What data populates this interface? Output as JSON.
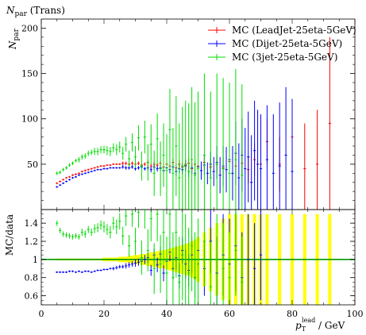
{
  "chart_data": {
    "type": "scatter",
    "title": "N",
    "title_sub": "par",
    "title_tail": " (Trans)",
    "ylabel_main": "N",
    "ylabel_main_sub": "par",
    "ylabel_ratio": "MC/data",
    "xlabel_main": "p",
    "xlabel_sub": "T",
    "xlabel_sup": "lead",
    "xlabel_unit": " / GeV",
    "xlim": [
      0,
      100
    ],
    "ylim_main": [
      0,
      210
    ],
    "ylim_ratio": [
      0.5,
      1.55
    ],
    "x_ticks": [
      "0",
      "20",
      "40",
      "60",
      "80",
      "100"
    ],
    "y_ticks_main": [
      "50",
      "100",
      "150",
      "200"
    ],
    "y_ticks_ratio": [
      "0.6",
      "0.8",
      "1",
      "1.2",
      "1.4"
    ],
    "legend_position": "top-right",
    "series": [
      {
        "name": "MC (LeadJet-25eta-5GeV)",
        "color": "#ff0000",
        "x": [
          5,
          6,
          7,
          8,
          9,
          10,
          11,
          12,
          13,
          14,
          15,
          16,
          17,
          18,
          19,
          20,
          21,
          22,
          23,
          24,
          25,
          26,
          27,
          28,
          29,
          30,
          31,
          32,
          33,
          34,
          35,
          36,
          37,
          38,
          39,
          40,
          41,
          42,
          43,
          44,
          45,
          46,
          47,
          48,
          49,
          50,
          52,
          54,
          56,
          58,
          60,
          62,
          64,
          66,
          68,
          70,
          72,
          76,
          80,
          84,
          88,
          92
        ],
        "y": [
          29,
          31,
          33,
          35,
          36,
          38,
          39,
          40,
          42,
          43,
          44,
          45,
          46,
          47,
          48,
          48,
          49,
          49,
          50,
          50,
          50,
          51,
          51,
          50,
          51,
          50,
          51,
          49,
          50,
          52,
          48,
          50,
          49,
          51,
          47,
          50,
          48,
          52,
          46,
          50,
          47,
          49,
          51,
          45,
          50,
          48,
          52,
          47,
          50,
          46,
          53,
          48,
          51,
          44,
          55,
          50,
          75,
          50,
          80,
          45,
          50,
          95
        ],
        "err": [
          1,
          1,
          1,
          1,
          1,
          1,
          1,
          1,
          1,
          1,
          1,
          1,
          1,
          1,
          1,
          1,
          1,
          1,
          1,
          1,
          1,
          2,
          2,
          2,
          2,
          2,
          2,
          2,
          2,
          3,
          3,
          3,
          3,
          3,
          4,
          4,
          4,
          4,
          5,
          5,
          5,
          6,
          6,
          6,
          7,
          7,
          8,
          9,
          10,
          11,
          12,
          13,
          14,
          15,
          18,
          20,
          25,
          30,
          40,
          50,
          60,
          95
        ]
      },
      {
        "name": "MC (Dijet-25eta-5GeV)",
        "color": "#0000ff",
        "x": [
          5,
          6,
          7,
          8,
          9,
          10,
          11,
          12,
          13,
          14,
          15,
          16,
          17,
          18,
          19,
          20,
          21,
          22,
          23,
          24,
          25,
          26,
          27,
          28,
          29,
          30,
          31,
          32,
          33,
          34,
          35,
          36,
          37,
          38,
          39,
          40,
          41,
          42,
          43,
          44,
          45,
          46,
          47,
          48,
          49,
          50,
          51,
          52,
          53,
          54,
          55,
          56,
          57,
          58,
          59,
          60,
          61,
          62,
          63,
          64,
          65,
          66,
          67,
          68,
          69,
          70,
          72,
          74,
          76,
          78,
          80
        ],
        "y": [
          25,
          27,
          29,
          31,
          33,
          35,
          36,
          38,
          39,
          40,
          41,
          42,
          43,
          44,
          44,
          45,
          45,
          46,
          46,
          46,
          46,
          47,
          46,
          46,
          47,
          45,
          46,
          47,
          45,
          46,
          44,
          47,
          45,
          46,
          43,
          46,
          44,
          47,
          42,
          45,
          44,
          48,
          42,
          46,
          40,
          47,
          43,
          49,
          40,
          50,
          42,
          52,
          38,
          48,
          44,
          55,
          40,
          62,
          35,
          60,
          45,
          58,
          30,
          65,
          50,
          45,
          55,
          40,
          48,
          60,
          42
        ],
        "err": [
          1,
          1,
          1,
          1,
          1,
          1,
          1,
          1,
          1,
          1,
          1,
          1,
          1,
          1,
          1,
          1,
          1,
          1,
          1,
          1,
          1,
          2,
          2,
          2,
          2,
          2,
          2,
          2,
          2,
          3,
          3,
          3,
          3,
          3,
          4,
          4,
          4,
          4,
          5,
          5,
          5,
          6,
          6,
          7,
          8,
          9,
          10,
          11,
          12,
          14,
          16,
          18,
          20,
          22,
          25,
          28,
          30,
          35,
          38,
          40,
          45,
          50,
          52,
          55,
          60,
          60,
          60,
          65,
          70,
          75,
          80
        ]
      },
      {
        "name": "MC (3jet-25eta-5GeV)",
        "color": "#00dd00",
        "x": [
          5,
          6,
          7,
          8,
          9,
          10,
          11,
          12,
          13,
          14,
          15,
          16,
          17,
          18,
          19,
          20,
          21,
          22,
          23,
          24,
          25,
          26,
          27,
          28,
          29,
          30,
          31,
          32,
          33,
          34,
          35,
          36,
          37,
          38,
          39,
          40,
          41,
          42,
          43,
          44,
          45,
          46,
          47,
          48,
          49,
          50,
          52,
          54,
          56,
          58,
          60,
          62,
          64
        ],
        "y": [
          40,
          41,
          44,
          46,
          49,
          51,
          54,
          55,
          58,
          59,
          62,
          63,
          64,
          64,
          66,
          66,
          65,
          64,
          68,
          66,
          69,
          62,
          72,
          56,
          74,
          58,
          79,
          48,
          80,
          52,
          72,
          40,
          78,
          45,
          60,
          43,
          88,
          40,
          70,
          35,
          48,
          50,
          42,
          55,
          38,
          45,
          60,
          35,
          50,
          45,
          40,
          55,
          38
        ],
        "err": [
          2,
          2,
          2,
          2,
          2,
          2,
          2,
          3,
          3,
          3,
          3,
          3,
          4,
          4,
          4,
          4,
          5,
          5,
          5,
          6,
          6,
          7,
          8,
          9,
          10,
          12,
          14,
          16,
          18,
          20,
          22,
          25,
          28,
          30,
          35,
          40,
          45,
          50,
          55,
          60,
          65,
          70,
          75,
          80,
          80,
          85,
          90,
          95,
          100,
          100,
          100,
          100,
          100
        ]
      }
    ],
    "ratio_series": [
      {
        "name": "MC (Dijet-25eta-5GeV)",
        "color": "#0000ff",
        "x": [
          5,
          6,
          7,
          8,
          9,
          10,
          11,
          12,
          13,
          14,
          15,
          16,
          17,
          18,
          19,
          20,
          21,
          22,
          23,
          24,
          25,
          26,
          27,
          28,
          29,
          30,
          31,
          32,
          33,
          34,
          35,
          36,
          37,
          38,
          39,
          40,
          41,
          42,
          43,
          44,
          45,
          46,
          47,
          48,
          49,
          50,
          52,
          54,
          56,
          58,
          60,
          62,
          64,
          66,
          68,
          70
        ],
        "y": [
          0.86,
          0.86,
          0.86,
          0.86,
          0.87,
          0.87,
          0.86,
          0.87,
          0.86,
          0.87,
          0.87,
          0.86,
          0.87,
          0.88,
          0.88,
          0.89,
          0.89,
          0.9,
          0.9,
          0.91,
          0.92,
          0.92,
          0.93,
          0.94,
          0.95,
          0.96,
          0.97,
          0.98,
          1.0,
          1.02,
          0.88,
          1.05,
          0.94,
          1.06,
          0.85,
          0.98,
          1.08,
          0.9,
          1.02,
          0.82,
          1.1,
          0.95,
          0.88,
          1.05,
          0.8,
          1.1,
          0.9,
          1.2,
          0.85,
          1.05,
          0.95,
          1.15,
          0.8,
          1.0,
          0.9,
          1.05
        ],
        "err": [
          0.01,
          0.01,
          0.01,
          0.01,
          0.01,
          0.01,
          0.01,
          0.01,
          0.01,
          0.01,
          0.01,
          0.01,
          0.01,
          0.01,
          0.01,
          0.01,
          0.01,
          0.01,
          0.02,
          0.02,
          0.02,
          0.02,
          0.03,
          0.03,
          0.03,
          0.04,
          0.04,
          0.05,
          0.05,
          0.06,
          0.06,
          0.07,
          0.08,
          0.08,
          0.09,
          0.1,
          0.1,
          0.12,
          0.13,
          0.14,
          0.15,
          0.16,
          0.18,
          0.2,
          0.22,
          0.25,
          0.3,
          0.35,
          0.4,
          0.45,
          0.5,
          0.5,
          0.5,
          0.5,
          0.5,
          0.5
        ]
      },
      {
        "name": "MC (3jet-25eta-5GeV)",
        "color": "#00dd00",
        "x": [
          5,
          6,
          7,
          8,
          9,
          10,
          11,
          12,
          13,
          14,
          15,
          16,
          17,
          18,
          19,
          20,
          21,
          22,
          23,
          24,
          25,
          26,
          27,
          28,
          29,
          30,
          31,
          32,
          33,
          34,
          35,
          36,
          37,
          38,
          39,
          40,
          41,
          42,
          43,
          44,
          45,
          46,
          47,
          48,
          49,
          50,
          52,
          54,
          56,
          58,
          60,
          62,
          64
        ],
        "y": [
          1.4,
          1.32,
          1.28,
          1.27,
          1.26,
          1.25,
          1.26,
          1.25,
          1.3,
          1.28,
          1.33,
          1.3,
          1.34,
          1.35,
          1.38,
          1.36,
          1.33,
          1.3,
          1.4,
          1.36,
          1.42,
          1.26,
          1.48,
          1.15,
          1.5,
          1.2,
          1.52,
          1.02,
          1.55,
          1.1,
          1.45,
          0.9,
          1.5,
          0.95,
          1.3,
          0.85,
          1.5,
          0.8,
          1.3,
          0.75,
          1.05,
          1.0,
          0.85,
          1.15,
          0.8,
          0.95,
          1.2,
          0.7,
          1.0,
          0.9,
          0.8,
          1.1,
          0.75
        ],
        "err": [
          0.03,
          0.03,
          0.03,
          0.03,
          0.03,
          0.03,
          0.03,
          0.03,
          0.04,
          0.04,
          0.04,
          0.04,
          0.05,
          0.05,
          0.05,
          0.06,
          0.06,
          0.07,
          0.07,
          0.08,
          0.09,
          0.1,
          0.11,
          0.12,
          0.14,
          0.15,
          0.17,
          0.19,
          0.21,
          0.23,
          0.25,
          0.28,
          0.3,
          0.32,
          0.35,
          0.4,
          0.45,
          0.5,
          0.5,
          0.5,
          0.5,
          0.5,
          0.5,
          0.5,
          0.5,
          0.5,
          0.5,
          0.5,
          0.5,
          0.5,
          0.5,
          0.5,
          0.5
        ]
      }
    ],
    "data_band": {
      "color": "#ffff00",
      "x": [
        5,
        6,
        7,
        8,
        9,
        10,
        11,
        12,
        13,
        14,
        15,
        16,
        17,
        18,
        19,
        20,
        21,
        22,
        23,
        24,
        25,
        26,
        27,
        28,
        29,
        30,
        31,
        32,
        33,
        34,
        35,
        36,
        37,
        38,
        39,
        40,
        41,
        42,
        43,
        44,
        45,
        46,
        47,
        48,
        49,
        50,
        52,
        54,
        56,
        58,
        60,
        62,
        64,
        66,
        68,
        70,
        72,
        76,
        80,
        84,
        88,
        92
      ],
      "halfwidth": [
        0.01,
        0.01,
        0.01,
        0.01,
        0.01,
        0.01,
        0.01,
        0.01,
        0.01,
        0.01,
        0.01,
        0.01,
        0.01,
        0.01,
        0.01,
        0.02,
        0.02,
        0.02,
        0.02,
        0.02,
        0.03,
        0.03,
        0.03,
        0.04,
        0.04,
        0.05,
        0.05,
        0.06,
        0.06,
        0.07,
        0.08,
        0.08,
        0.09,
        0.1,
        0.1,
        0.11,
        0.12,
        0.13,
        0.14,
        0.15,
        0.16,
        0.17,
        0.18,
        0.2,
        0.22,
        0.25,
        0.3,
        0.35,
        0.4,
        0.45,
        0.5,
        0.5,
        0.5,
        0.5,
        0.5,
        0.5,
        0.5,
        0.5,
        0.5,
        0.5,
        0.5,
        0.5
      ]
    }
  }
}
